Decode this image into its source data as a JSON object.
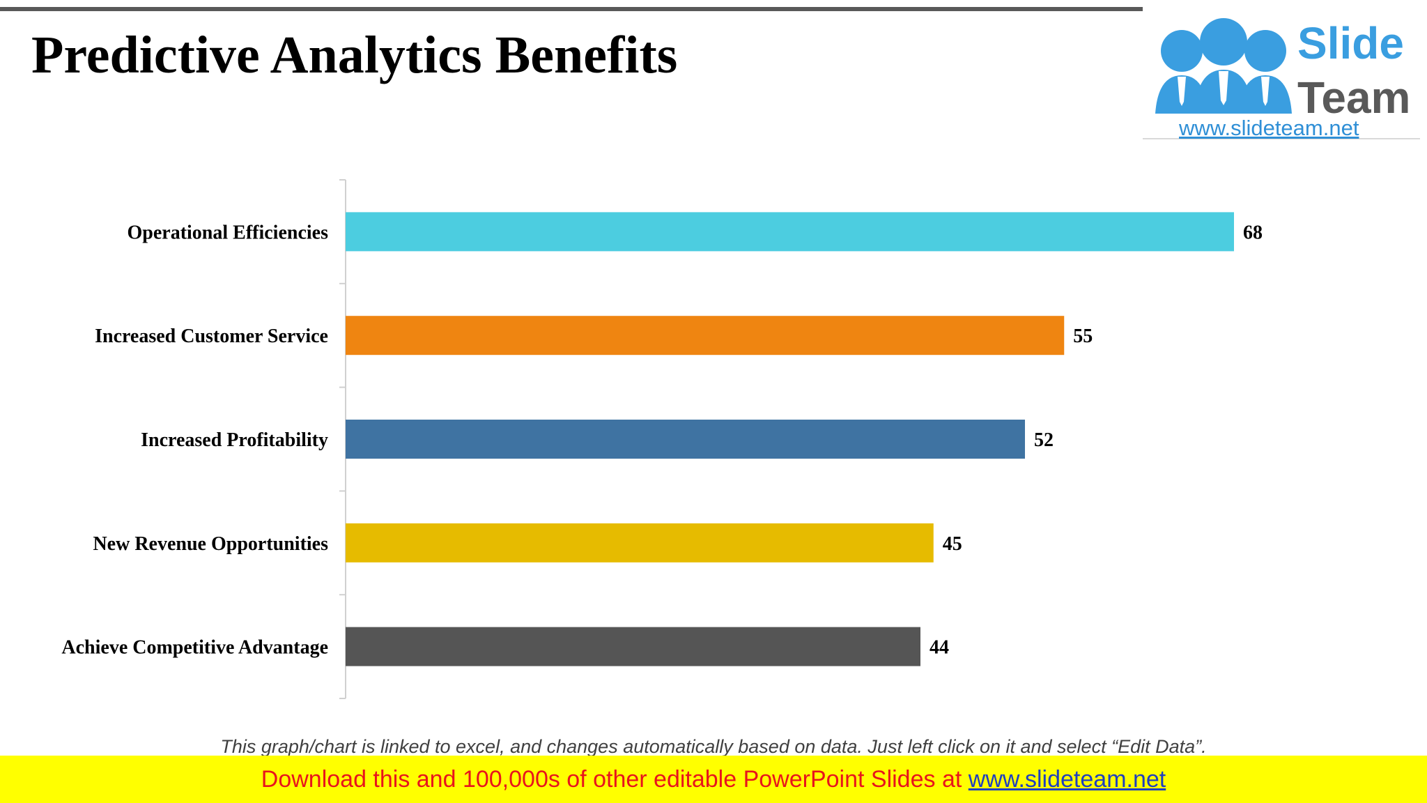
{
  "title": "Predictive Analytics Benefits",
  "logo": {
    "word1": "Slide",
    "word2": "Team",
    "url": "www.slideteam.net"
  },
  "chart_data": {
    "type": "bar",
    "orientation": "horizontal",
    "categories": [
      "Operational Efficiencies",
      "Increased Customer Service",
      "Increased Profitability",
      "New Revenue Opportunities",
      "Achieve Competitive Advantage"
    ],
    "values": [
      68,
      55,
      52,
      45,
      44
    ],
    "colors": [
      "#4ccde0",
      "#ef8511",
      "#3f73a2",
      "#e6bb00",
      "#555555"
    ],
    "xlim": [
      0,
      80
    ],
    "grid": false,
    "data_labels": true
  },
  "footnote": "This graph/chart is linked to excel, and changes automatically based on data. Just left click on it and select “Edit Data”.",
  "banner": {
    "text": "Download this and 100,000s of other editable PowerPoint Slides at ",
    "link": "www.slideteam.net"
  }
}
